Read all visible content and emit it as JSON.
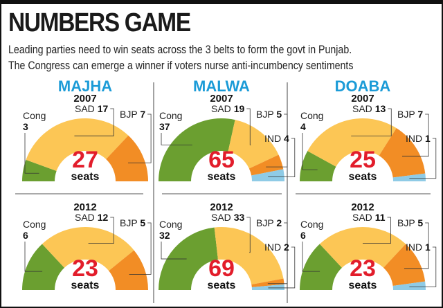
{
  "title": "NUMBERS GAME",
  "subtitle_lines": [
    "Leading parties need to win seats across the 3 belts to form the govt in Punjab.",
    "The Congress can emerge a winner if voters nurse anti-incumbency sentiments"
  ],
  "colors": {
    "Cong": "#6b9f30",
    "SAD": "#fcc655",
    "BJP": "#f28d25",
    "IND": "#8fcbe6",
    "total": "#e21d2b",
    "region": "#1b9bd7"
  },
  "chart_data": [
    {
      "type": "pie",
      "region": "MAJHA",
      "year": "2007",
      "total": 27,
      "unit": "seats",
      "slices": [
        {
          "party": "Cong",
          "value": 3
        },
        {
          "party": "SAD",
          "value": 17
        },
        {
          "party": "BJP",
          "value": 7
        }
      ]
    },
    {
      "type": "pie",
      "region": "MAJHA",
      "year": "2012",
      "total": 23,
      "unit": "seats",
      "slices": [
        {
          "party": "Cong",
          "value": 6
        },
        {
          "party": "SAD",
          "value": 12
        },
        {
          "party": "BJP",
          "value": 5
        }
      ]
    },
    {
      "type": "pie",
      "region": "MALWA",
      "year": "2007",
      "total": 65,
      "unit": "seats",
      "slices": [
        {
          "party": "Cong",
          "value": 37
        },
        {
          "party": "SAD",
          "value": 19
        },
        {
          "party": "BJP",
          "value": 5
        },
        {
          "party": "IND",
          "value": 4
        }
      ]
    },
    {
      "type": "pie",
      "region": "MALWA",
      "year": "2012",
      "total": 69,
      "unit": "seats",
      "slices": [
        {
          "party": "Cong",
          "value": 32
        },
        {
          "party": "SAD",
          "value": 33
        },
        {
          "party": "BJP",
          "value": 2
        },
        {
          "party": "IND",
          "value": 2
        }
      ]
    },
    {
      "type": "pie",
      "region": "DOABA",
      "year": "2007",
      "total": 25,
      "unit": "seats",
      "slices": [
        {
          "party": "Cong",
          "value": 4
        },
        {
          "party": "SAD",
          "value": 13
        },
        {
          "party": "BJP",
          "value": 7
        },
        {
          "party": "IND",
          "value": 1
        }
      ]
    },
    {
      "type": "pie",
      "region": "DOABA",
      "year": "2012",
      "total": 23,
      "unit": "seats",
      "slices": [
        {
          "party": "Cong",
          "value": 6
        },
        {
          "party": "SAD",
          "value": 11
        },
        {
          "party": "BJP",
          "value": 5
        },
        {
          "party": "IND",
          "value": 1
        }
      ]
    }
  ],
  "regions": [
    "MAJHA",
    "MALWA",
    "DOABA"
  ]
}
